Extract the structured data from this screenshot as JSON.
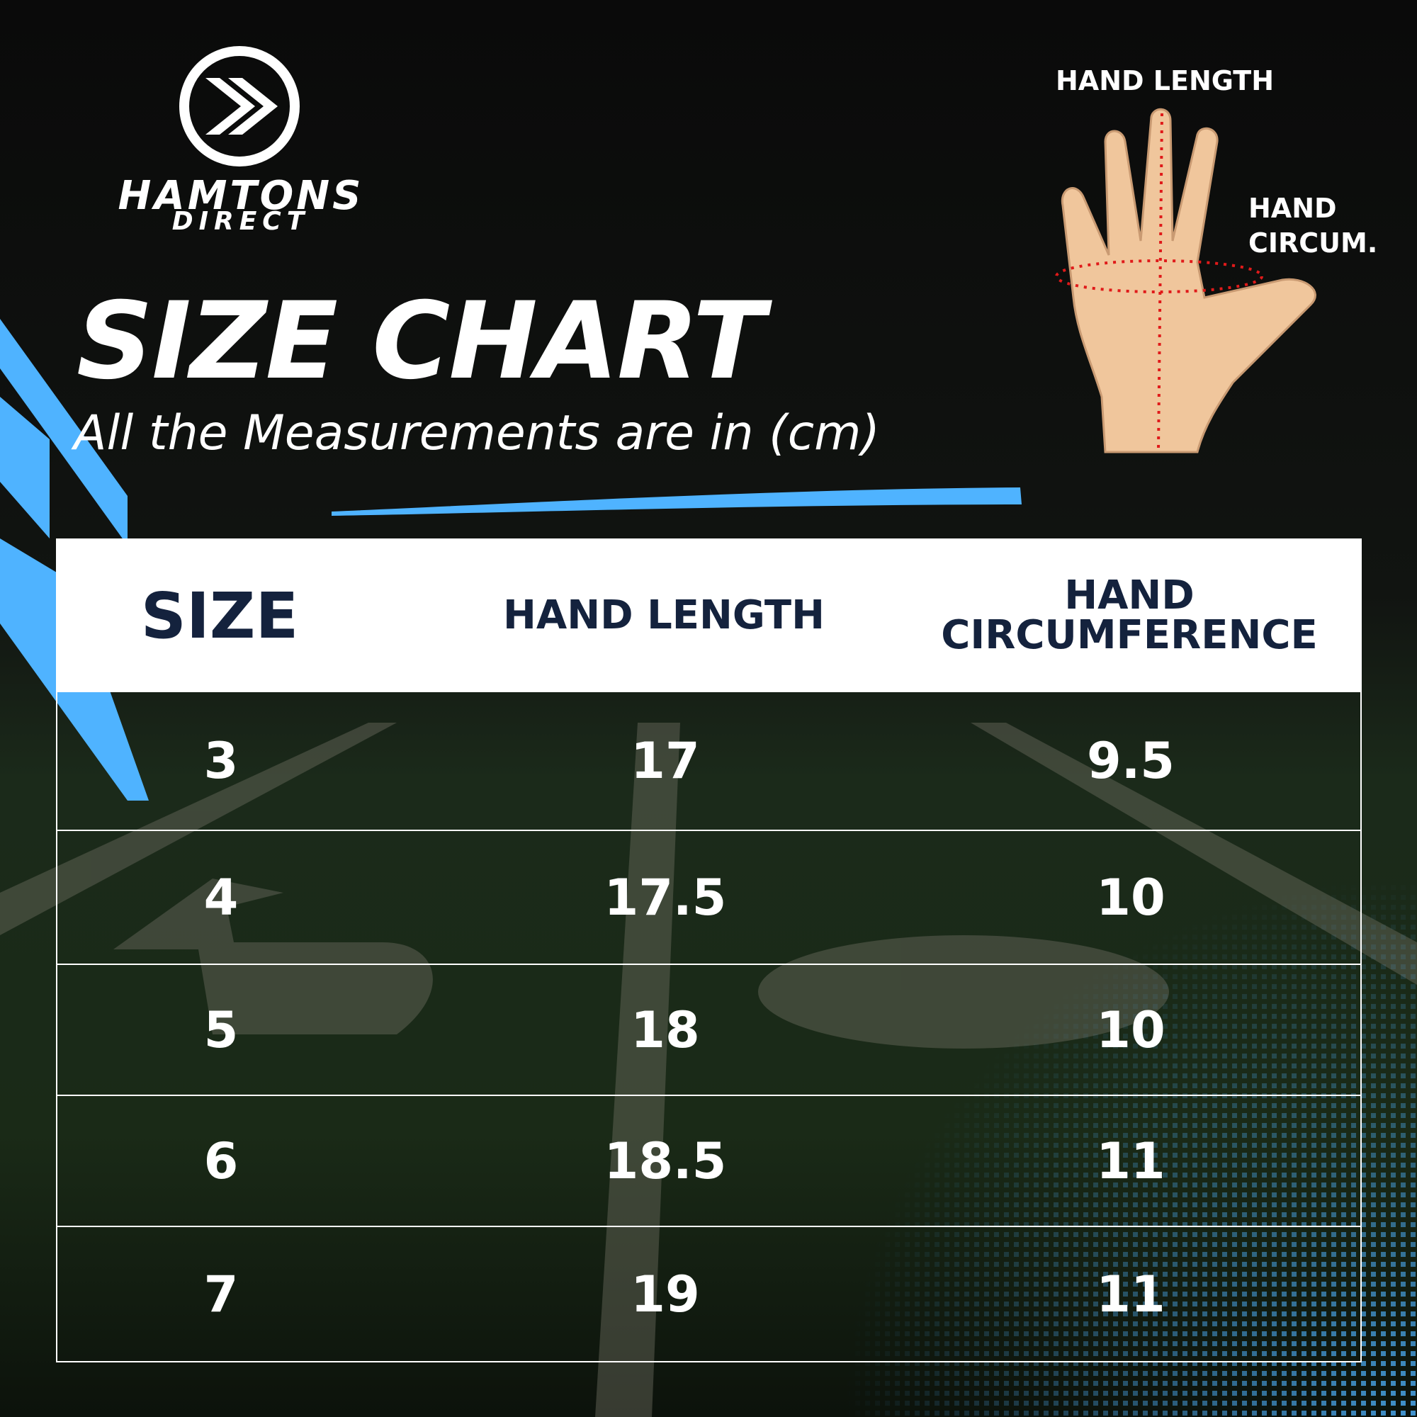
{
  "logo": {
    "name": "HAMTONS",
    "sub": "DIRECT"
  },
  "header": {
    "title": "SIZE CHART",
    "subtitle": "All the Measurements are in (cm)"
  },
  "diagram": {
    "length_label": "HAND LENGTH",
    "circum_label": "HAND CIRCUM."
  },
  "table": {
    "columns": [
      "SIZE",
      "HAND LENGTH",
      "HAND CIRCUMFERENCE"
    ],
    "rows": [
      [
        "3",
        "17",
        "9.5"
      ],
      [
        "4",
        "17.5",
        "10"
      ],
      [
        "5",
        "18",
        "10"
      ],
      [
        "6",
        "18.5",
        "11"
      ],
      [
        "7",
        "19",
        "11"
      ]
    ]
  }
}
